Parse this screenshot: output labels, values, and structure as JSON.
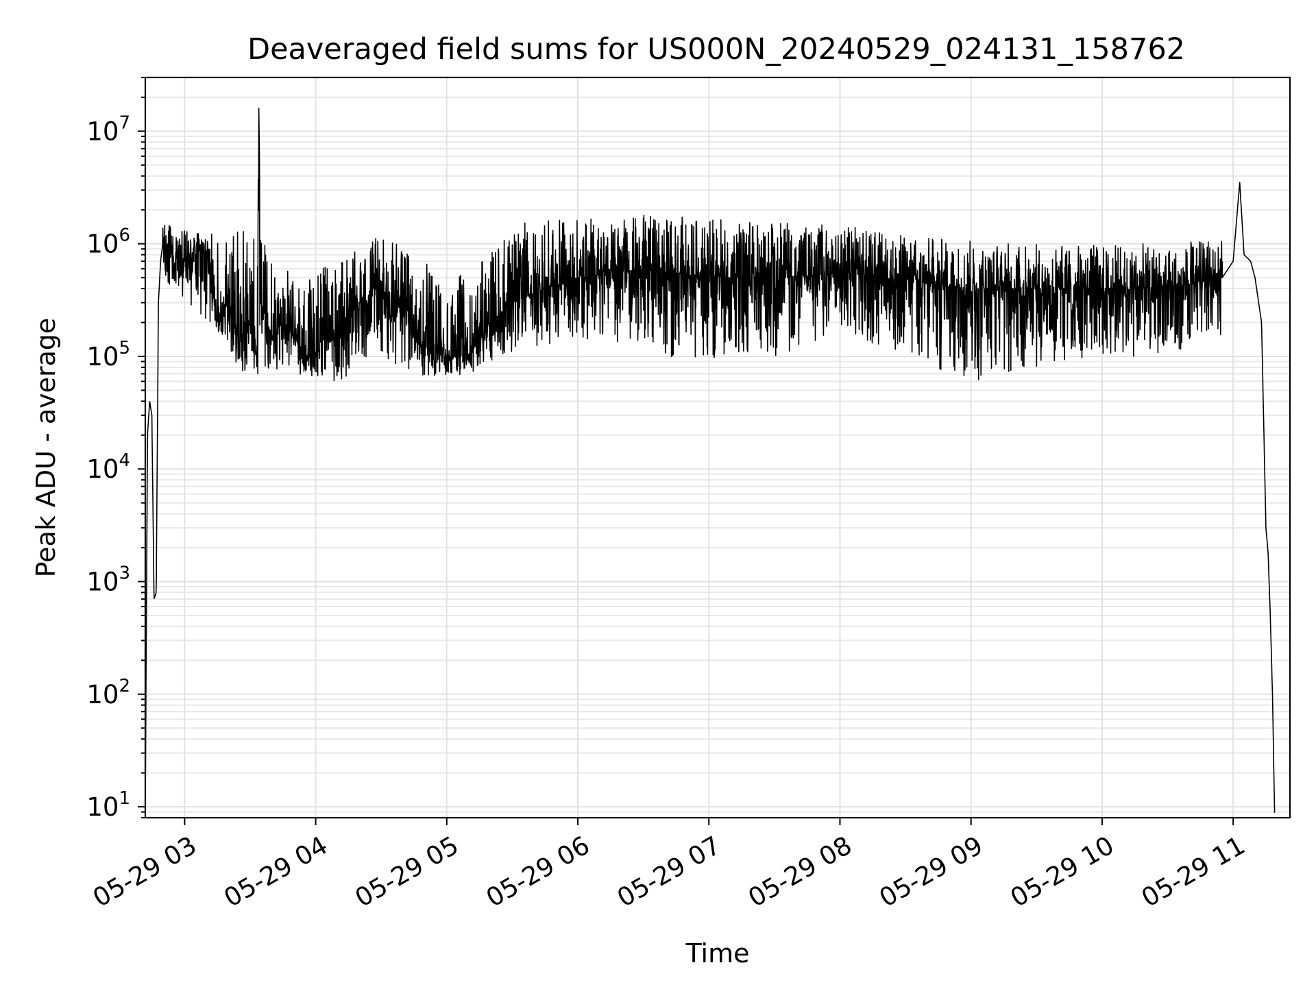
{
  "chart_data": {
    "type": "line",
    "title": "Deaveraged field sums for US000N_20240529_024131_158762",
    "xlabel": "Time",
    "ylabel": "Peak ADU - average",
    "y_scale": "log",
    "ylim": [
      8,
      30000000
    ],
    "xlim": [
      "2024-05-29T02:42",
      "2024-05-29T11:26"
    ],
    "x_tick_labels": [
      "05-29 03",
      "05-29 04",
      "05-29 05",
      "05-29 06",
      "05-29 07",
      "05-29 08",
      "05-29 09",
      "05-29 10",
      "05-29 11"
    ],
    "x_ticks": [
      "2024-05-29T03:00",
      "2024-05-29T04:00",
      "2024-05-29T05:00",
      "2024-05-29T06:00",
      "2024-05-29T07:00",
      "2024-05-29T08:00",
      "2024-05-29T09:00",
      "2024-05-29T10:00",
      "2024-05-29T11:00"
    ],
    "y_ticks": [
      {
        "base": "10",
        "exp": "1",
        "value": 10
      },
      {
        "base": "10",
        "exp": "2",
        "value": 100
      },
      {
        "base": "10",
        "exp": "3",
        "value": 1000
      },
      {
        "base": "10",
        "exp": "4",
        "value": 10000
      },
      {
        "base": "10",
        "exp": "5",
        "value": 100000
      },
      {
        "base": "10",
        "exp": "6",
        "value": 1000000
      },
      {
        "base": "10",
        "exp": "7",
        "value": 10000000
      }
    ],
    "grid": true,
    "legend": "none",
    "series": [
      {
        "color": "#000000",
        "x": [
          "2024-05-29T02:42",
          "2024-05-29T02:43",
          "2024-05-29T02:44",
          "2024-05-29T02:45",
          "2024-05-29T02:46",
          "2024-05-29T02:47",
          "2024-05-29T02:48",
          "2024-05-29T02:49",
          "2024-05-29T02:50",
          "2024-05-29T02:51",
          "2024-05-29T02:52",
          "2024-05-29T02:53",
          "2024-05-29T02:55",
          "2024-05-29T02:57",
          "2024-05-29T02:58",
          "2024-05-29T03:00",
          "2024-05-29T03:05",
          "2024-05-29T03:10",
          "2024-05-29T03:15",
          "2024-05-29T03:20",
          "2024-05-29T03:25",
          "2024-05-29T03:30",
          "2024-05-29T03:33",
          "2024-05-29T03:34",
          "2024-05-29T03:35",
          "2024-05-29T03:40",
          "2024-05-29T03:45",
          "2024-05-29T03:50",
          "2024-05-29T03:55",
          "2024-05-29T04:00",
          "2024-05-29T04:10",
          "2024-05-29T04:20",
          "2024-05-29T04:30",
          "2024-05-29T04:35",
          "2024-05-29T04:40",
          "2024-05-29T04:45",
          "2024-05-29T04:50",
          "2024-05-29T04:55",
          "2024-05-29T05:00",
          "2024-05-29T05:10",
          "2024-05-29T05:20",
          "2024-05-29T05:30",
          "2024-05-29T05:45",
          "2024-05-29T06:00",
          "2024-05-29T06:30",
          "2024-05-29T07:00",
          "2024-05-29T07:30",
          "2024-05-29T08:00",
          "2024-05-29T08:30",
          "2024-05-29T09:00",
          "2024-05-29T09:30",
          "2024-05-29T10:00",
          "2024-05-29T10:30",
          "2024-05-29T10:55",
          "2024-05-29T11:00",
          "2024-05-29T11:03",
          "2024-05-29T11:05",
          "2024-05-29T11:08",
          "2024-05-29T11:10",
          "2024-05-29T11:13",
          "2024-05-29T11:15",
          "2024-05-29T11:16",
          "2024-05-29T11:17",
          "2024-05-29T11:18",
          "2024-05-29T11:19"
        ],
        "y": [
          10,
          20000,
          40000,
          30000,
          700,
          800,
          300000,
          700000,
          1000000,
          1200000,
          900000,
          1500000,
          600000,
          800000,
          500000,
          700000,
          900000,
          800000,
          200000,
          300000,
          150000,
          200000,
          100000,
          16000000,
          300000,
          150000,
          200000,
          150000,
          100000,
          110000,
          150000,
          300000,
          400000,
          200000,
          400000,
          150000,
          120000,
          110000,
          100000,
          100000,
          200000,
          300000,
          400000,
          500000,
          600000,
          500000,
          500000,
          550000,
          500000,
          400000,
          400000,
          400000,
          400000,
          500000,
          700000,
          3500000,
          800000,
          700000,
          500000,
          200000,
          3000,
          1800,
          500,
          100,
          8
        ]
      }
    ],
    "noise": {
      "description": "dense fluctuation range (low, high) per time window",
      "x": [
        "2024-05-29T02:50",
        "2024-05-29T03:10",
        "2024-05-29T03:30",
        "2024-05-29T03:50",
        "2024-05-29T04:10",
        "2024-05-29T04:30",
        "2024-05-29T04:50",
        "2024-05-29T05:10",
        "2024-05-29T05:30",
        "2024-05-29T06:00",
        "2024-05-29T06:30",
        "2024-05-29T07:00",
        "2024-05-29T07:30",
        "2024-05-29T08:00",
        "2024-05-29T08:30",
        "2024-05-29T09:00",
        "2024-05-29T09:30",
        "2024-05-29T10:00",
        "2024-05-29T10:30",
        "2024-05-29T10:55"
      ],
      "low": [
        500000,
        200000,
        60000,
        70000,
        60000,
        100000,
        60000,
        70000,
        100000,
        150000,
        100000,
        90000,
        100000,
        150000,
        100000,
        60000,
        80000,
        100000,
        100000,
        150000
      ],
      "high": [
        1500000,
        1200000,
        1500000,
        500000,
        700000,
        1200000,
        700000,
        500000,
        1500000,
        1700000,
        1800000,
        1700000,
        1600000,
        1500000,
        1200000,
        1100000,
        1000000,
        1000000,
        1000000,
        1100000
      ]
    }
  }
}
